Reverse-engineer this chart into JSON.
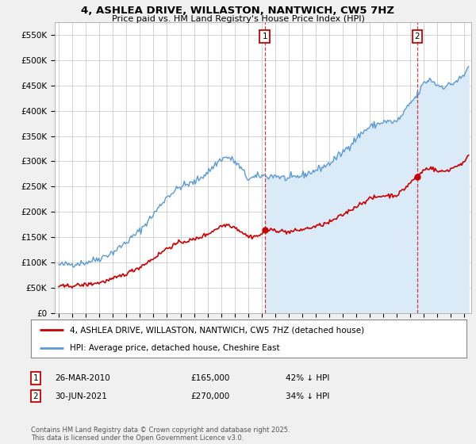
{
  "title": "4, ASHLEA DRIVE, WILLASTON, NANTWICH, CW5 7HZ",
  "subtitle": "Price paid vs. HM Land Registry's House Price Index (HPI)",
  "hpi_label": "HPI: Average price, detached house, Cheshire East",
  "property_label": "4, ASHLEA DRIVE, WILLASTON, NANTWICH, CW5 7HZ (detached house)",
  "hpi_color": "#5b9bd5",
  "hpi_fill_color": "#daeaf7",
  "property_color": "#cc0000",
  "marker1_date_x": 2010.23,
  "marker2_date_x": 2021.5,
  "marker1_y": 165000,
  "marker2_y": 270000,
  "marker1_label": "26-MAR-2010",
  "marker1_price": "£165,000",
  "marker1_hpi": "42% ↓ HPI",
  "marker2_label": "30-JUN-2021",
  "marker2_price": "£270,000",
  "marker2_hpi": "34% ↓ HPI",
  "footer": "Contains HM Land Registry data © Crown copyright and database right 2025.\nThis data is licensed under the Open Government Licence v3.0.",
  "ylim": [
    0,
    575000
  ],
  "yticks": [
    0,
    50000,
    100000,
    150000,
    200000,
    250000,
    300000,
    350000,
    400000,
    450000,
    500000,
    550000
  ],
  "xlim_start": 1994.7,
  "xlim_end": 2025.5,
  "background_color": "#f0f0f0",
  "plot_background": "#ffffff",
  "grid_color": "#cccccc"
}
